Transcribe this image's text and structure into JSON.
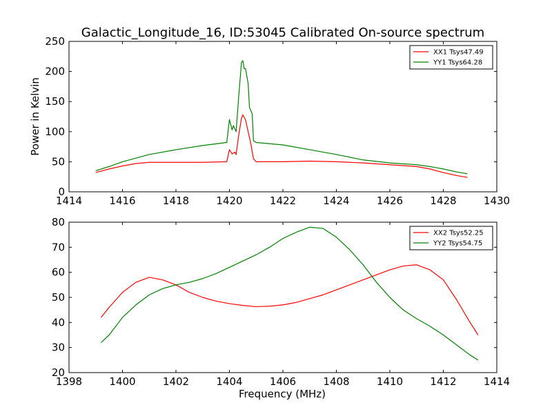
{
  "figure": {
    "title": "Galactic_Longitude_16, ID:53045 Calibrated On-source spectrum"
  },
  "chart_data": [
    {
      "type": "line",
      "title": "Galactic_Longitude_16, ID:53045 Calibrated On-source spectrum",
      "xlabel": "",
      "ylabel": "Power in Kelvin",
      "xlim": [
        1414,
        1430
      ],
      "ylim": [
        0,
        250
      ],
      "xticks": [
        1414,
        1416,
        1418,
        1420,
        1422,
        1424,
        1426,
        1428,
        1430
      ],
      "yticks": [
        0,
        50,
        100,
        150,
        200,
        250
      ],
      "grid": false,
      "legend_position": "top-right",
      "series": [
        {
          "name": "XX1 Tsys47.49",
          "color": "#ff0000",
          "points": [
            [
              1415.0,
              32
            ],
            [
              1415.5,
              38
            ],
            [
              1416.0,
              43
            ],
            [
              1416.5,
              47
            ],
            [
              1417.0,
              49
            ],
            [
              1418.0,
              49
            ],
            [
              1419.0,
              49
            ],
            [
              1419.9,
              50
            ],
            [
              1420.0,
              70
            ],
            [
              1420.1,
              63
            ],
            [
              1420.2,
              66
            ],
            [
              1420.25,
              62
            ],
            [
              1420.35,
              95
            ],
            [
              1420.45,
              122
            ],
            [
              1420.5,
              128
            ],
            [
              1420.6,
              120
            ],
            [
              1420.7,
              100
            ],
            [
              1420.8,
              80
            ],
            [
              1420.9,
              55
            ],
            [
              1421.0,
              50
            ],
            [
              1422.0,
              50
            ],
            [
              1423.0,
              51
            ],
            [
              1424.0,
              50
            ],
            [
              1425.0,
              48
            ],
            [
              1426.0,
              45
            ],
            [
              1427.0,
              42
            ],
            [
              1427.5,
              38
            ],
            [
              1428.0,
              32
            ],
            [
              1428.5,
              27
            ],
            [
              1428.9,
              24
            ]
          ]
        },
        {
          "name": "YY1 Tsys64.28",
          "color": "#008000",
          "points": [
            [
              1415.0,
              35
            ],
            [
              1415.5,
              42
            ],
            [
              1416.0,
              50
            ],
            [
              1416.5,
              56
            ],
            [
              1417.0,
              62
            ],
            [
              1418.0,
              70
            ],
            [
              1419.0,
              77
            ],
            [
              1419.9,
              82
            ],
            [
              1420.0,
              120
            ],
            [
              1420.1,
              103
            ],
            [
              1420.15,
              110
            ],
            [
              1420.25,
              100
            ],
            [
              1420.35,
              160
            ],
            [
              1420.45,
              215
            ],
            [
              1420.5,
              218
            ],
            [
              1420.55,
              205
            ],
            [
              1420.6,
              205
            ],
            [
              1420.7,
              180
            ],
            [
              1420.75,
              140
            ],
            [
              1420.85,
              130
            ],
            [
              1420.9,
              85
            ],
            [
              1421.0,
              82
            ],
            [
              1422.0,
              78
            ],
            [
              1423.0,
              70
            ],
            [
              1424.0,
              62
            ],
            [
              1425.0,
              53
            ],
            [
              1426.0,
              48
            ],
            [
              1427.0,
              45
            ],
            [
              1427.5,
              42
            ],
            [
              1428.0,
              38
            ],
            [
              1428.5,
              33
            ],
            [
              1428.9,
              30
            ]
          ]
        }
      ]
    },
    {
      "type": "line",
      "title": "",
      "xlabel": "Frequency (MHz)",
      "ylabel": "",
      "xlim": [
        1398,
        1414
      ],
      "ylim": [
        20,
        80
      ],
      "xticks": [
        1398,
        1400,
        1402,
        1404,
        1406,
        1408,
        1410,
        1412,
        1414
      ],
      "yticks": [
        20,
        30,
        40,
        50,
        60,
        70,
        80
      ],
      "grid": false,
      "legend_position": "top-right",
      "series": [
        {
          "name": "XX2 Tsys52.25",
          "color": "#ff0000",
          "points": [
            [
              1399.2,
              42
            ],
            [
              1399.5,
              46
            ],
            [
              1400.0,
              52
            ],
            [
              1400.5,
              56
            ],
            [
              1401.0,
              58
            ],
            [
              1401.5,
              57
            ],
            [
              1402.0,
              55
            ],
            [
              1402.5,
              52
            ],
            [
              1403.0,
              50
            ],
            [
              1403.5,
              48.5
            ],
            [
              1404.0,
              47.5
            ],
            [
              1404.5,
              46.8
            ],
            [
              1405.0,
              46.3
            ],
            [
              1405.5,
              46.5
            ],
            [
              1406.0,
              47
            ],
            [
              1406.5,
              48
            ],
            [
              1407.0,
              49.5
            ],
            [
              1407.5,
              51
            ],
            [
              1408.0,
              53
            ],
            [
              1408.5,
              55
            ],
            [
              1409.0,
              57
            ],
            [
              1409.5,
              59
            ],
            [
              1410.0,
              61
            ],
            [
              1410.5,
              62.5
            ],
            [
              1411.0,
              63
            ],
            [
              1411.5,
              61
            ],
            [
              1412.0,
              57
            ],
            [
              1412.5,
              49
            ],
            [
              1413.0,
              40
            ],
            [
              1413.3,
              35
            ]
          ]
        },
        {
          "name": "YY2 Tsys54.75",
          "color": "#008000",
          "points": [
            [
              1399.2,
              32
            ],
            [
              1399.5,
              35
            ],
            [
              1400.0,
              42
            ],
            [
              1400.5,
              47
            ],
            [
              1401.0,
              51
            ],
            [
              1401.5,
              53.5
            ],
            [
              1402.0,
              55
            ],
            [
              1402.5,
              56
            ],
            [
              1403.0,
              57.5
            ],
            [
              1403.5,
              59.5
            ],
            [
              1404.0,
              62
            ],
            [
              1404.5,
              64.5
            ],
            [
              1405.0,
              67
            ],
            [
              1405.5,
              70
            ],
            [
              1406.0,
              73.5
            ],
            [
              1406.5,
              76
            ],
            [
              1407.0,
              78
            ],
            [
              1407.5,
              77.5
            ],
            [
              1408.0,
              74
            ],
            [
              1408.5,
              69
            ],
            [
              1409.0,
              63
            ],
            [
              1409.5,
              56
            ],
            [
              1410.0,
              50
            ],
            [
              1410.5,
              45
            ],
            [
              1411.0,
              41.5
            ],
            [
              1411.5,
              38.5
            ],
            [
              1412.0,
              35
            ],
            [
              1412.5,
              31
            ],
            [
              1413.0,
              27
            ],
            [
              1413.3,
              25
            ]
          ]
        }
      ]
    }
  ]
}
